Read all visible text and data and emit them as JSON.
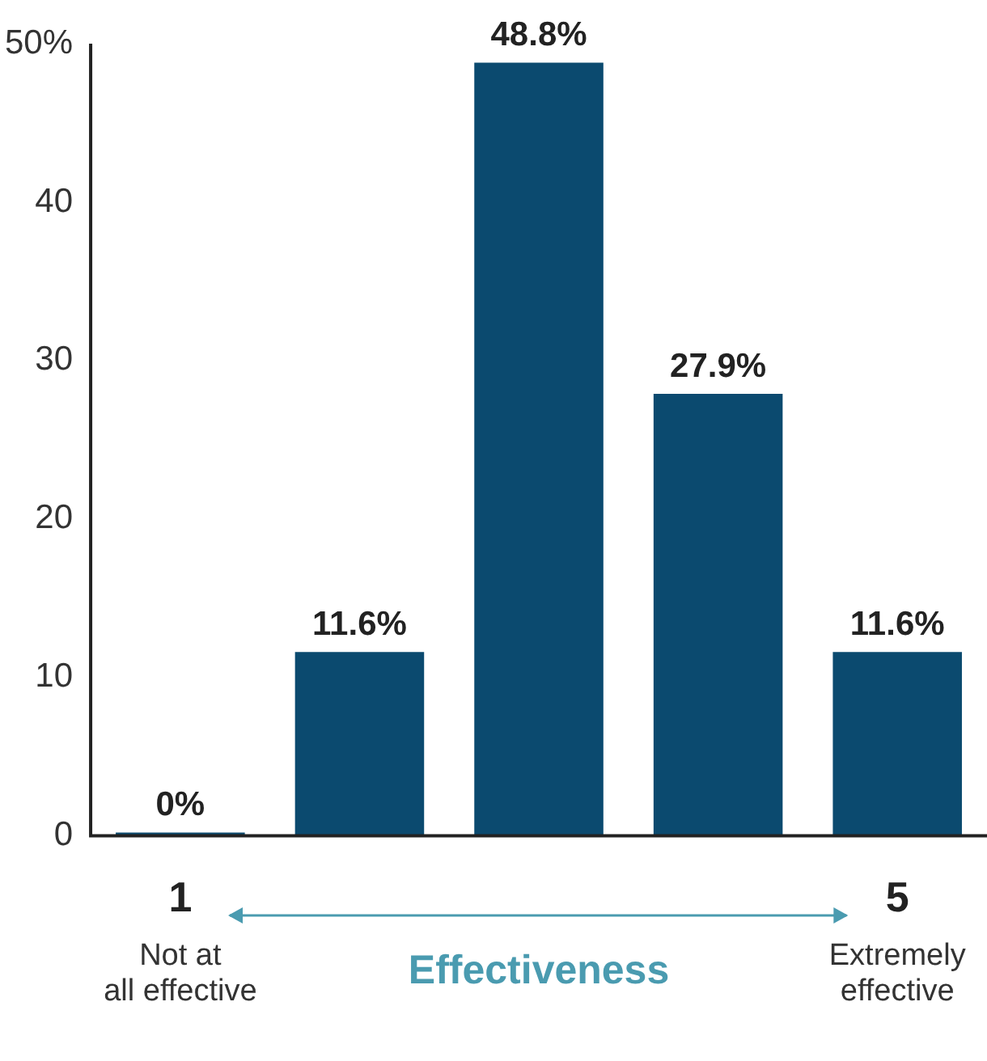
{
  "chart_data": {
    "type": "bar",
    "categories": [
      "1",
      null,
      null,
      null,
      "5"
    ],
    "values": [
      0,
      11.6,
      48.8,
      27.9,
      11.6
    ],
    "color": "#0b4a6f",
    "value_labels": [
      "0%",
      "11.6%",
      "48.8%",
      "27.9%",
      "11.6%"
    ],
    "ylim": [
      0,
      50
    ],
    "yticks": [
      0,
      10,
      20,
      30,
      40,
      {
        "value": 50,
        "label": "50%"
      }
    ],
    "xlabel": "Effectiveness",
    "annotations": [
      "Not at\nall effective",
      "Extremely\neffective"
    ],
    "grid": false,
    "legend": false
  }
}
